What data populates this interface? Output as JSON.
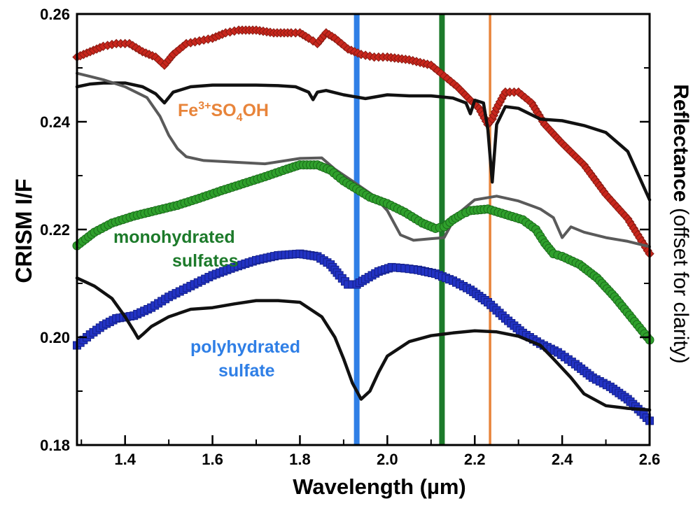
{
  "chart_data": {
    "type": "line",
    "xlabel": "Wavelength (µm)",
    "ylabel_left": "CRISM I/F",
    "ylabel_right_bold": "Reflectance",
    "ylabel_right_rest": " (offset for clarity)",
    "xlim": [
      1.29,
      2.6
    ],
    "ylim": [
      0.18,
      0.26
    ],
    "xticks": [
      "1.4",
      "1.6",
      "1.8",
      "2.0",
      "2.2",
      "2.4",
      "2.6"
    ],
    "yticks": [
      "0.18",
      "0.20",
      "0.22",
      "0.24",
      "0.26"
    ],
    "grid": false,
    "vertical_lines": [
      {
        "x": 1.93,
        "color": "#2f7fe6"
      },
      {
        "x": 2.125,
        "color": "#1c7a2a"
      },
      {
        "x": 2.235,
        "color": "#e8843a"
      }
    ],
    "annotations": {
      "fe_base": "Fe",
      "fe_sup": "3+",
      "fe_mid": "SO",
      "fe_sub": "4",
      "fe_end": "OH",
      "mono_line1": "monohydrated",
      "mono_line2": "sulfates",
      "poly_line1": "polyhydrated",
      "poly_line2": "sulfate"
    },
    "series": [
      {
        "color": "#c8261c",
        "marker": "diamond",
        "line": false,
        "x": [
          1.29,
          1.32,
          1.35,
          1.38,
          1.41,
          1.44,
          1.47,
          1.49,
          1.51,
          1.54,
          1.57,
          1.6,
          1.63,
          1.66,
          1.7,
          1.74,
          1.78,
          1.8,
          1.82,
          1.83,
          1.84,
          1.86,
          1.88,
          1.91,
          1.94,
          1.97,
          2.0,
          2.05,
          2.1,
          2.13,
          2.16,
          2.19,
          2.21,
          2.23,
          2.24,
          2.25,
          2.27,
          2.3,
          2.33,
          2.36,
          2.4,
          2.45,
          2.5,
          2.55,
          2.6
        ],
        "y": [
          0.252,
          0.253,
          0.254,
          0.2545,
          0.2545,
          0.253,
          0.252,
          0.2505,
          0.2525,
          0.2545,
          0.255,
          0.2555,
          0.2565,
          0.257,
          0.257,
          0.2565,
          0.2565,
          0.2565,
          0.2555,
          0.255,
          0.2545,
          0.2565,
          0.2555,
          0.2535,
          0.2525,
          0.252,
          0.252,
          0.2515,
          0.2505,
          0.2485,
          0.2465,
          0.244,
          0.2425,
          0.2395,
          0.2405,
          0.2425,
          0.2455,
          0.2455,
          0.2435,
          0.2395,
          0.236,
          0.232,
          0.2265,
          0.222,
          0.2155
        ]
      },
      {
        "color": "#111111",
        "marker": "none",
        "line": true,
        "width": 4.5,
        "x": [
          1.29,
          1.32,
          1.35,
          1.4,
          1.44,
          1.47,
          1.49,
          1.51,
          1.55,
          1.6,
          1.65,
          1.7,
          1.75,
          1.79,
          1.82,
          1.83,
          1.84,
          1.86,
          1.9,
          1.95,
          2.0,
          2.05,
          2.1,
          2.15,
          2.18,
          2.19,
          2.2,
          2.22,
          2.23,
          2.24,
          2.25,
          2.27,
          2.3,
          2.35,
          2.4,
          2.45,
          2.5,
          2.55,
          2.6
        ],
        "y": [
          0.2465,
          0.247,
          0.2472,
          0.2472,
          0.2465,
          0.2452,
          0.2435,
          0.2455,
          0.2465,
          0.2468,
          0.2468,
          0.2468,
          0.2467,
          0.2465,
          0.2455,
          0.2441,
          0.2455,
          0.2458,
          0.245,
          0.2443,
          0.245,
          0.2448,
          0.2448,
          0.2444,
          0.2435,
          0.2415,
          0.244,
          0.2435,
          0.2385,
          0.2288,
          0.2395,
          0.2428,
          0.2425,
          0.2405,
          0.2402,
          0.2393,
          0.238,
          0.2345,
          0.2255
        ]
      },
      {
        "color": "#5a5a5a",
        "marker": "none",
        "line": true,
        "width": 4,
        "x": [
          1.29,
          1.35,
          1.4,
          1.45,
          1.48,
          1.5,
          1.52,
          1.54,
          1.58,
          1.65,
          1.72,
          1.8,
          1.85,
          1.88,
          1.92,
          1.97,
          2.0,
          2.03,
          2.06,
          2.1,
          2.13,
          2.15,
          2.17,
          2.2,
          2.25,
          2.3,
          2.35,
          2.38,
          2.4,
          2.42,
          2.45,
          2.5,
          2.55,
          2.6
        ],
        "y": [
          0.249,
          0.2478,
          0.2465,
          0.2445,
          0.241,
          0.2375,
          0.235,
          0.2335,
          0.2328,
          0.2325,
          0.2322,
          0.2332,
          0.2333,
          0.2312,
          0.229,
          0.2262,
          0.2235,
          0.219,
          0.218,
          0.2183,
          0.2185,
          0.2215,
          0.2235,
          0.2255,
          0.2262,
          0.2253,
          0.2238,
          0.2222,
          0.2185,
          0.2205,
          0.2195,
          0.2185,
          0.2178,
          0.2168
        ]
      },
      {
        "color": "#2fa02c",
        "marker": "circle",
        "line": false,
        "x": [
          1.29,
          1.33,
          1.37,
          1.42,
          1.47,
          1.52,
          1.57,
          1.62,
          1.67,
          1.72,
          1.77,
          1.8,
          1.84,
          1.87,
          1.9,
          1.93,
          1.96,
          2.0,
          2.04,
          2.08,
          2.11,
          2.13,
          2.15,
          2.17,
          2.19,
          2.23,
          2.27,
          2.31,
          2.34,
          2.36,
          2.38,
          2.4,
          2.44,
          2.48,
          2.52,
          2.56,
          2.6
        ],
        "y": [
          0.217,
          0.2195,
          0.2212,
          0.2225,
          0.2235,
          0.2245,
          0.2258,
          0.2272,
          0.2285,
          0.2298,
          0.2312,
          0.232,
          0.232,
          0.231,
          0.229,
          0.2275,
          0.226,
          0.2248,
          0.2232,
          0.2212,
          0.2202,
          0.2205,
          0.2218,
          0.2228,
          0.2235,
          0.2238,
          0.2228,
          0.2218,
          0.22,
          0.2175,
          0.2155,
          0.215,
          0.2135,
          0.211,
          0.2075,
          0.2035,
          0.1995
        ]
      },
      {
        "color": "#2233c4",
        "marker": "square",
        "line": false,
        "x": [
          1.29,
          1.32,
          1.35,
          1.38,
          1.42,
          1.46,
          1.5,
          1.55,
          1.6,
          1.65,
          1.7,
          1.75,
          1.8,
          1.84,
          1.87,
          1.89,
          1.91,
          1.93,
          1.95,
          1.98,
          2.01,
          2.04,
          2.07,
          2.11,
          2.15,
          2.19,
          2.23,
          2.27,
          2.31,
          2.35,
          2.39,
          2.43,
          2.47,
          2.51,
          2.55,
          2.58,
          2.6
        ],
        "y": [
          0.1985,
          0.2005,
          0.2022,
          0.2035,
          0.204,
          0.2055,
          0.2075,
          0.2095,
          0.2115,
          0.213,
          0.2143,
          0.2152,
          0.2155,
          0.215,
          0.2135,
          0.2115,
          0.2098,
          0.2098,
          0.2108,
          0.2122,
          0.213,
          0.2128,
          0.2125,
          0.2118,
          0.2105,
          0.2088,
          0.2065,
          0.2035,
          0.2008,
          0.1988,
          0.1972,
          0.195,
          0.1925,
          0.1908,
          0.1885,
          0.1862,
          0.1845
        ]
      },
      {
        "color": "#111111",
        "marker": "none",
        "line": true,
        "width": 4.5,
        "x": [
          1.29,
          1.33,
          1.37,
          1.4,
          1.42,
          1.43,
          1.44,
          1.46,
          1.5,
          1.55,
          1.6,
          1.65,
          1.7,
          1.75,
          1.8,
          1.85,
          1.88,
          1.9,
          1.92,
          1.94,
          1.96,
          1.98,
          2.0,
          2.05,
          2.1,
          2.15,
          2.2,
          2.25,
          2.3,
          2.35,
          2.38,
          2.42,
          2.45,
          2.5,
          2.55,
          2.6
        ],
        "y": [
          0.211,
          0.2095,
          0.2072,
          0.2038,
          0.2012,
          0.1998,
          0.2005,
          0.202,
          0.2038,
          0.2052,
          0.2055,
          0.2062,
          0.2068,
          0.2068,
          0.2065,
          0.2038,
          0.2,
          0.196,
          0.1915,
          0.1885,
          0.19,
          0.1935,
          0.1965,
          0.1992,
          0.2003,
          0.2008,
          0.2012,
          0.201,
          0.2002,
          0.1985,
          0.196,
          0.1925,
          0.1895,
          0.1873,
          0.1868,
          0.1865
        ]
      }
    ]
  }
}
